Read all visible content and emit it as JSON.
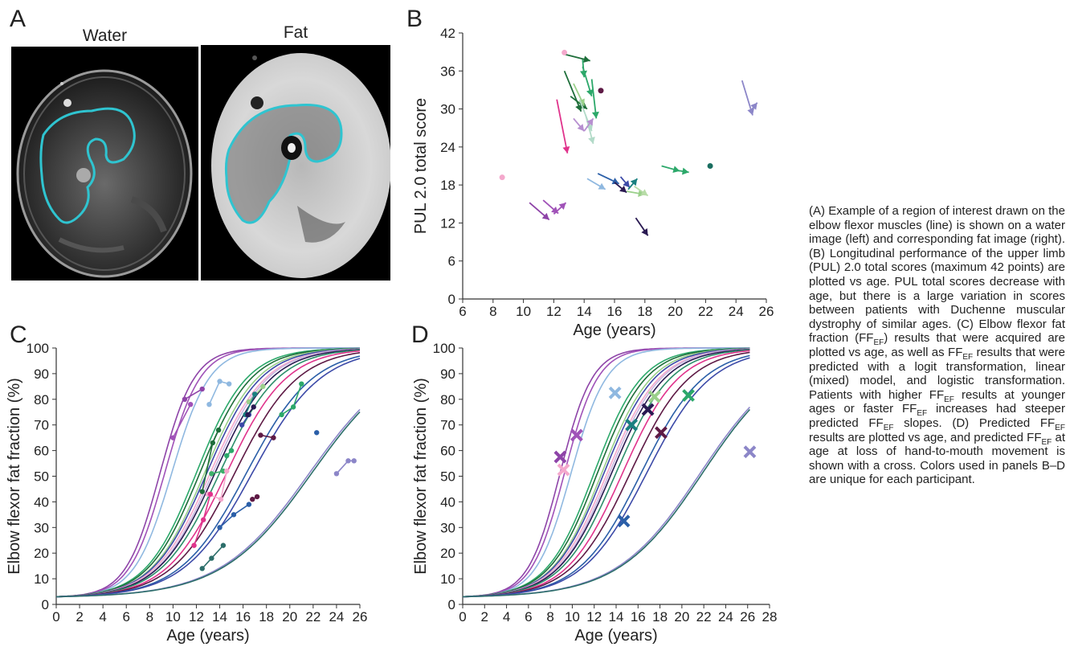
{
  "panels": {
    "A": {
      "letter": "A",
      "left_label": "Water",
      "right_label": "Fat"
    },
    "B": {
      "letter": "B"
    },
    "C": {
      "letter": "C"
    },
    "D": {
      "letter": "D"
    }
  },
  "caption": {
    "parts": [
      "(A) Example of a region of interest drawn on the elbow flexor muscles (line) is shown on a water image (left) and corresponding fat image (right). (B) Longitudinal performance of the upper limb (PUL) 2.0 total scores (maximum 42 points) are plotted vs age. PUL total scores decrease with age, but there is a large variation in scores between patients with Duchenne muscular dystrophy of similar ages. (C) Elbow flexor fat fraction (FF",
      "EF",
      ") results that were acquired are plotted vs age, as well as FF",
      "EF",
      " results that were predicted with a logit transformation, linear (mixed) model, and logistic transformation. Patients with higher FF",
      "EF",
      " results at younger ages or faster FF",
      "EF",
      " increases had steeper predicted FF",
      "EF",
      " slopes. (D) Predicted FF",
      "EF",
      " results are plotted vs age, and predicted FF",
      "EF",
      " at age at loss of hand-to-mouth movement is shown with a cross. Colors used in panels B–D are unique for each participant."
    ]
  },
  "colors": {
    "roi": "#2fc4d0",
    "axis": "#333333",
    "palette": [
      "#8e44a8",
      "#a052b8",
      "#8fb8e0",
      "#2ca86a",
      "#1e6e3a",
      "#9ad08a",
      "#e0338c",
      "#f4a8cc",
      "#2a1a52",
      "#3c4aa8",
      "#2b5fa8",
      "#5e1a45",
      "#c8b6e0",
      "#b78fd0",
      "#2c6e6a",
      "#1a8080"
    ]
  },
  "chart_data": [
    {
      "panel": "B",
      "type": "scatter",
      "xlabel": "Age (years)",
      "ylabel": "PUL 2.0 total score",
      "xlim": [
        6,
        26
      ],
      "ylim": [
        0,
        42
      ],
      "xticks": [
        6,
        8,
        10,
        12,
        14,
        16,
        18,
        20,
        22,
        24,
        26
      ],
      "yticks": [
        0,
        6,
        12,
        18,
        24,
        30,
        36,
        42
      ],
      "arrows": [
        {
          "x1": 12.6,
          "y1": 38.7,
          "x2": 14.4,
          "y2": 37.6,
          "color": "#1e6e3a"
        },
        {
          "x1": 13.9,
          "y1": 36.7,
          "x2": 14.5,
          "y2": 32.0,
          "color": "#2ca86a"
        },
        {
          "x1": 13.9,
          "y1": 37.8,
          "x2": 14.0,
          "y2": 35.0,
          "color": "#2ca86a"
        },
        {
          "x1": 14.5,
          "y1": 34.7,
          "x2": 14.8,
          "y2": 28.5,
          "color": "#2ca86a"
        },
        {
          "x1": 12.7,
          "y1": 36.0,
          "x2": 13.8,
          "y2": 29.6,
          "color": "#1e6e3a"
        },
        {
          "x1": 13.1,
          "y1": 32.0,
          "x2": 14.2,
          "y2": 30.0,
          "color": "#1e6e3a"
        },
        {
          "x1": 13.3,
          "y1": 34.0,
          "x2": 14.0,
          "y2": 30.5,
          "color": "#9ad08a"
        },
        {
          "x1": 13.7,
          "y1": 31.5,
          "x2": 14.5,
          "y2": 26.5,
          "color": "#b2dac8"
        },
        {
          "x1": 14.1,
          "y1": 29.0,
          "x2": 14.6,
          "y2": 24.5,
          "color": "#b2dac8"
        },
        {
          "x1": 13.3,
          "y1": 28.5,
          "x2": 14.0,
          "y2": 26.5,
          "color": "#b78fd0"
        },
        {
          "x1": 14.0,
          "y1": 26.5,
          "x2": 14.6,
          "y2": 28.5,
          "color": "#b78fd0"
        },
        {
          "x1": 12.2,
          "y1": 31.5,
          "x2": 12.9,
          "y2": 23.0,
          "color": "#e0338c"
        },
        {
          "x1": 14.2,
          "y1": 19.0,
          "x2": 15.4,
          "y2": 17.3,
          "color": "#8fb8e0"
        },
        {
          "x1": 14.9,
          "y1": 19.8,
          "x2": 16.3,
          "y2": 18.2,
          "color": "#2b5fa8"
        },
        {
          "x1": 16.0,
          "y1": 18.4,
          "x2": 16.8,
          "y2": 16.8,
          "color": "#2a1a52"
        },
        {
          "x1": 16.4,
          "y1": 19.3,
          "x2": 17.0,
          "y2": 17.6,
          "color": "#3c4aa8"
        },
        {
          "x1": 16.9,
          "y1": 17.3,
          "x2": 17.5,
          "y2": 19.0,
          "color": "#1a8080"
        },
        {
          "x1": 16.8,
          "y1": 17.0,
          "x2": 18.0,
          "y2": 16.5,
          "color": "#9ad08a"
        },
        {
          "x1": 17.3,
          "y1": 17.8,
          "x2": 18.2,
          "y2": 16.3,
          "color": "#b8dca8"
        },
        {
          "x1": 19.1,
          "y1": 21.0,
          "x2": 20.3,
          "y2": 20.2,
          "color": "#2ca86a"
        },
        {
          "x1": 19.9,
          "y1": 20.4,
          "x2": 20.9,
          "y2": 20.0,
          "color": "#2ca86a"
        },
        {
          "x1": 10.4,
          "y1": 15.2,
          "x2": 11.7,
          "y2": 12.5,
          "color": "#8e44a8"
        },
        {
          "x1": 11.3,
          "y1": 15.6,
          "x2": 12.3,
          "y2": 13.5,
          "color": "#a052b8"
        },
        {
          "x1": 12.0,
          "y1": 13.4,
          "x2": 12.8,
          "y2": 15.2,
          "color": "#a052b8"
        },
        {
          "x1": 17.4,
          "y1": 12.8,
          "x2": 18.2,
          "y2": 10.0,
          "color": "#2a1a52"
        },
        {
          "x1": 24.4,
          "y1": 34.5,
          "x2": 25.1,
          "y2": 29.0,
          "color": "#8c86c8"
        },
        {
          "x1": 24.9,
          "y1": 29.5,
          "x2": 25.4,
          "y2": 31.0,
          "color": "#8c86c8"
        }
      ],
      "points": [
        {
          "x": 12.7,
          "y": 38.9,
          "color": "#f4a8cc"
        },
        {
          "x": 15.1,
          "y": 32.9,
          "color": "#5e1a45"
        },
        {
          "x": 8.6,
          "y": 19.2,
          "color": "#f4a8cc"
        },
        {
          "x": 22.3,
          "y": 21.0,
          "color": "#1a6e60"
        }
      ]
    },
    {
      "panel": "C",
      "type": "line",
      "xlabel": "Age (years)",
      "ylabel": "Elbow flexor fat fraction (%)",
      "xlim": [
        0,
        26
      ],
      "ylim": [
        0,
        100
      ],
      "xticks": [
        0,
        2,
        4,
        6,
        8,
        10,
        12,
        14,
        16,
        18,
        20,
        22,
        24,
        26
      ],
      "yticks": [
        0,
        10,
        20,
        30,
        40,
        50,
        60,
        70,
        80,
        90,
        100
      ],
      "curves": [
        {
          "x50": 8.9,
          "k": 0.68,
          "color": "#8e44a8"
        },
        {
          "x50": 9.3,
          "k": 0.66,
          "color": "#a052b8"
        },
        {
          "x50": 9.9,
          "k": 0.62,
          "color": "#8fb8e0"
        },
        {
          "x50": 12.0,
          "k": 0.46,
          "color": "#2ca86a"
        },
        {
          "x50": 12.3,
          "k": 0.45,
          "color": "#1e6e3a"
        },
        {
          "x50": 12.7,
          "k": 0.44,
          "color": "#9ad08a"
        },
        {
          "x50": 12.9,
          "k": 0.43,
          "color": "#3c4aa8"
        },
        {
          "x50": 13.2,
          "k": 0.42,
          "color": "#f4a8cc"
        },
        {
          "x50": 13.4,
          "k": 0.42,
          "color": "#c8b6e0"
        },
        {
          "x50": 13.6,
          "k": 0.41,
          "color": "#2a1a52"
        },
        {
          "x50": 14.0,
          "k": 0.4,
          "color": "#2c8e6a"
        },
        {
          "x50": 14.6,
          "k": 0.39,
          "color": "#e0338c"
        },
        {
          "x50": 15.3,
          "k": 0.37,
          "color": "#5e1a45"
        },
        {
          "x50": 16.3,
          "k": 0.35,
          "color": "#2b5fa8"
        },
        {
          "x50": 16.8,
          "k": 0.34,
          "color": "#3c4aa8"
        },
        {
          "x50": 21.7,
          "k": 0.26,
          "color": "#8c86c8"
        },
        {
          "x50": 21.9,
          "k": 0.26,
          "color": "#2c6e6a"
        }
      ],
      "observed": [
        {
          "color": "#8e44a8",
          "pts": [
            [
              11.0,
              80
            ],
            [
              12.5,
              84
            ]
          ]
        },
        {
          "color": "#a052b8",
          "pts": [
            [
              10.0,
              65
            ],
            [
              11.5,
              78
            ]
          ]
        },
        {
          "color": "#8fb8e0",
          "pts": [
            [
              13.1,
              78
            ],
            [
              14.0,
              87
            ],
            [
              14.8,
              86
            ]
          ]
        },
        {
          "color": "#2ca86a",
          "pts": [
            [
              14.6,
              58
            ],
            [
              15.0,
              60
            ]
          ]
        },
        {
          "color": "#1e6e3a",
          "pts": [
            [
              12.5,
              44
            ],
            [
              13.4,
              63
            ],
            [
              13.9,
              68
            ]
          ]
        },
        {
          "color": "#3cb06a",
          "pts": [
            [
              13.3,
              51
            ],
            [
              14.3,
              52
            ]
          ]
        },
        {
          "color": "#9ad08a",
          "pts": [
            [
              16.5,
              79
            ],
            [
              17.7,
              85
            ]
          ]
        },
        {
          "color": "#2ca86a",
          "pts": [
            [
              19.3,
              74
            ],
            [
              20.3,
              77
            ],
            [
              21.0,
              86
            ]
          ]
        },
        {
          "color": "#1a8080",
          "pts": [
            [
              16.2,
              74
            ],
            [
              17.0,
              82
            ]
          ]
        },
        {
          "color": "#3c4aa8",
          "pts": [
            [
              15.9,
              70
            ],
            [
              16.5,
              74
            ]
          ]
        },
        {
          "color": "#2a1a52",
          "pts": [
            [
              16.4,
              74
            ],
            [
              16.9,
              77
            ]
          ]
        },
        {
          "color": "#f4a8cc",
          "pts": [
            [
              13.0,
              43
            ],
            [
              14.1,
              41
            ],
            [
              14.6,
              52
            ]
          ]
        },
        {
          "color": "#e0338c",
          "pts": [
            [
              11.8,
              23
            ],
            [
              12.6,
              33
            ],
            [
              13.2,
              43
            ]
          ]
        },
        {
          "color": "#5e1a45",
          "pts": [
            [
              17.5,
              66
            ],
            [
              18.6,
              65
            ]
          ]
        },
        {
          "color": "#5e1a45",
          "pts": [
            [
              16.8,
              41
            ],
            [
              17.2,
              42
            ]
          ]
        },
        {
          "color": "#2b5fa8",
          "pts": [
            [
              14.0,
              30
            ],
            [
              15.2,
              35
            ],
            [
              16.5,
              39
            ]
          ]
        },
        {
          "color": "#2b5fa8",
          "pts": [
            [
              22.3,
              67
            ]
          ]
        },
        {
          "color": "#2c6e6a",
          "pts": [
            [
              12.5,
              14
            ],
            [
              13.3,
              18
            ],
            [
              14.3,
              23
            ]
          ]
        },
        {
          "color": "#8c86c8",
          "pts": [
            [
              24.0,
              51
            ],
            [
              25.0,
              56
            ],
            [
              25.5,
              56
            ]
          ]
        }
      ]
    },
    {
      "panel": "D",
      "type": "line",
      "xlabel": "Age (years)",
      "ylabel": "Elbow flexor fat fraction (%)",
      "xlim": [
        0,
        28
      ],
      "ylim": [
        0,
        100
      ],
      "xticks": [
        0,
        2,
        4,
        6,
        8,
        10,
        12,
        14,
        16,
        18,
        20,
        22,
        24,
        26,
        28
      ],
      "yticks": [
        0,
        10,
        20,
        30,
        40,
        50,
        60,
        70,
        80,
        90,
        100
      ],
      "crosses": [
        {
          "x": 8.9,
          "y": 57.5,
          "color": "#8e44a8"
        },
        {
          "x": 9.2,
          "y": 52.5,
          "color": "#f4a8cc"
        },
        {
          "x": 10.4,
          "y": 66.0,
          "color": "#a052b8"
        },
        {
          "x": 13.9,
          "y": 82.5,
          "color": "#8fb8e0"
        },
        {
          "x": 14.7,
          "y": 32.5,
          "color": "#2b5fa8"
        },
        {
          "x": 15.4,
          "y": 70.0,
          "color": "#1a8080"
        },
        {
          "x": 16.9,
          "y": 76.0,
          "color": "#2a1a52"
        },
        {
          "x": 17.5,
          "y": 81.0,
          "color": "#9ad08a"
        },
        {
          "x": 18.1,
          "y": 67.0,
          "color": "#5e1a45"
        },
        {
          "x": 20.6,
          "y": 81.5,
          "color": "#2ca86a"
        },
        {
          "x": 26.2,
          "y": 59.5,
          "color": "#8c86c8"
        }
      ]
    }
  ]
}
